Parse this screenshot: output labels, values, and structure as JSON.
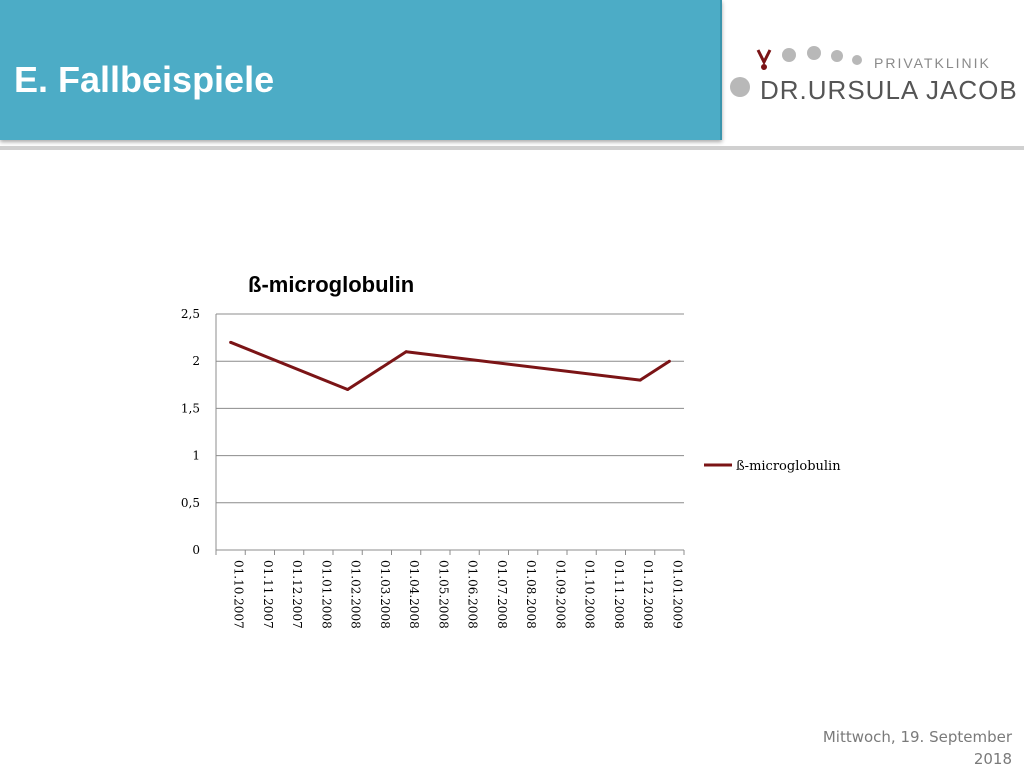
{
  "header": {
    "title": "E. Fallbeispiele"
  },
  "logo": {
    "subtitle": "PRIVATKLINIK",
    "name": "DR.URSULA JACOB"
  },
  "footer": {
    "date_line1": "Mittwoch, 19. September",
    "date_line2": "2018"
  },
  "chart_data": {
    "type": "line",
    "title": "ß-microglobulin",
    "x": [
      "01.10.2007",
      "01.11.2007",
      "01.12.2007",
      "01.01.2008",
      "01.02.2008",
      "01.03.2008",
      "01.04.2008",
      "01.05.2008",
      "01.06.2008",
      "01.07.2008",
      "01.08.2008",
      "01.09.2008",
      "01.10.2008",
      "01.11.2008",
      "01.12.2008",
      "01.01.2009"
    ],
    "series": [
      {
        "name": "ß-microglobulin",
        "points": [
          {
            "x": "01.10.2007",
            "y": 2.2
          },
          {
            "x": "01.02.2008",
            "y": 1.7
          },
          {
            "x": "01.04.2008",
            "y": 2.1
          },
          {
            "x": "01.12.2008",
            "y": 1.8
          },
          {
            "x": "01.01.2009",
            "y": 2.0
          }
        ],
        "color": "#7b1416"
      }
    ],
    "yticks": [
      "0",
      "0,5",
      "1",
      "1,5",
      "2",
      "2,5"
    ],
    "ylim": [
      0,
      2.5
    ],
    "grid": true,
    "legend_position": "right"
  }
}
